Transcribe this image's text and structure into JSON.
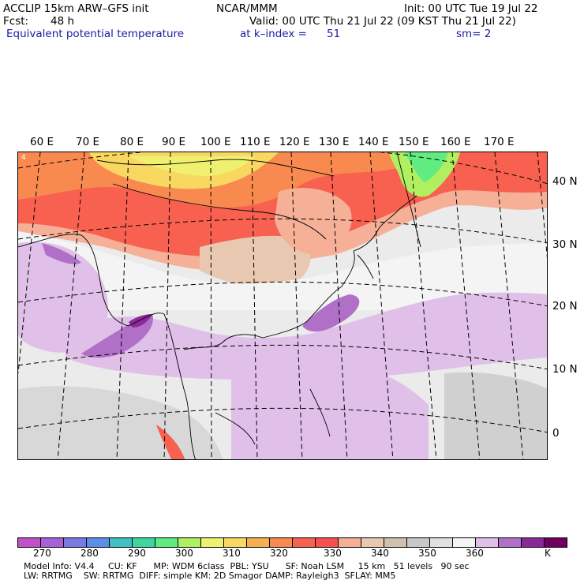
{
  "header": {
    "model_line": "ACCLIP 15km ARW–GFS init",
    "org": "NCAR/MMM",
    "init": "Init: 00 UTC Tue 19 Jul 22",
    "fcst_label": "Fcst:",
    "fcst_value": "48 h",
    "valid": "Valid: 00 UTC Thu 21 Jul 22 (09 KST Thu 21 Jul 22)",
    "field": "Equivalent potential temperature",
    "level": "at k–index =",
    "level_value": "51",
    "smooth": "sm= 2"
  },
  "map": {
    "lon_labels": [
      "60 E",
      "70 E",
      "80 E",
      "90 E",
      "100 E",
      "110 E",
      "120 E",
      "130 E",
      "140 E",
      "150 E",
      "160 E",
      "170 E"
    ],
    "lat_labels": [
      "40 N",
      "30 N",
      "20 N",
      "10 N",
      "0"
    ],
    "corner_mark": "4"
  },
  "colorbar": {
    "colors": [
      "#c050c8",
      "#a860d8",
      "#7a7ae0",
      "#5a8ee8",
      "#40c0c0",
      "#3ed6a0",
      "#60ec80",
      "#b0f060",
      "#f0f070",
      "#f8d860",
      "#f6b050",
      "#f88a50",
      "#f86050",
      "#f85050",
      "#f6b098",
      "#e8c8b0",
      "#d0c0b0",
      "#c8c8c8",
      "#e0e0e0",
      "#f4f4f4",
      "#e0c0e8",
      "#b070c8",
      "#8a2a98",
      "#700060"
    ],
    "ticks": [
      "270",
      "280",
      "290",
      "300",
      "310",
      "320",
      "330",
      "340",
      "350",
      "360",
      "K"
    ]
  },
  "footer": {
    "line1": "Model Info: V4.4     CU: KF      MP: WDM 6class  PBL: YSU      SF: Noah LSM     15 km   51 levels   90 sec",
    "line2": "LW: RRTMG    SW: RRTMG  DIFF: simple KM: 2D Smagor DAMP: Rayleigh3  SFLAY: MM5"
  }
}
